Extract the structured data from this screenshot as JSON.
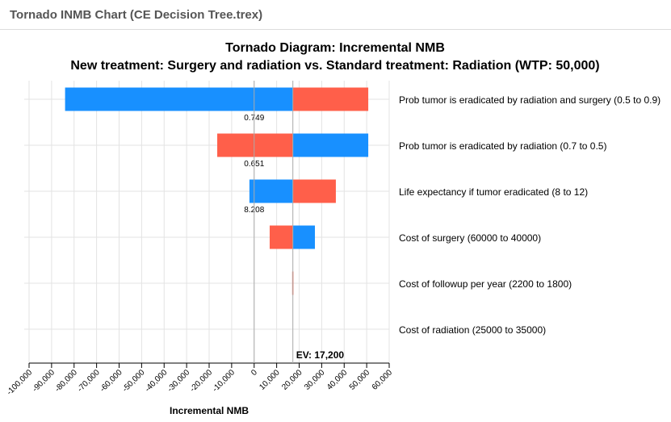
{
  "window_title": "Tornado INMB Chart (CE Decision Tree.trex)",
  "chart_data": {
    "type": "tornado",
    "title": "Tornado Diagram: Incremental NMB",
    "subtitle": "New treatment: Surgery and radiation vs. Standard treatment: Radiation (WTP: 50,000)",
    "xlabel": "Incremental NMB",
    "xlim": [
      -100000,
      60000
    ],
    "xticks": [
      -100000,
      -90000,
      -80000,
      -70000,
      -60000,
      -50000,
      -40000,
      -30000,
      -20000,
      -10000,
      0,
      10000,
      20000,
      30000,
      40000,
      50000,
      60000
    ],
    "xtick_labels": [
      "-100,000",
      "-90,000",
      "-80,000",
      "-70,000",
      "-60,000",
      "-50,000",
      "-40,000",
      "-30,000",
      "-20,000",
      "-10,000",
      "0",
      "10,000",
      "20,000",
      "30,000",
      "40,000",
      "50,000",
      "60,000"
    ],
    "ev": 17200,
    "ev_label": "EV: 17,200",
    "colors": {
      "low": "#1890ff",
      "high": "#ff5f4a"
    },
    "bars": [
      {
        "label": "Prob tumor is eradicated by radiation and surgery (0.5 to 0.9)",
        "low_value": -84000,
        "high_value": 50700,
        "breakeven": "0.749"
      },
      {
        "label": "Prob tumor is eradicated by radiation (0.7 to 0.5)",
        "low_value": 50700,
        "high_value": -16400,
        "breakeven": "0.651"
      },
      {
        "label": "Life expectancy if tumor eradicated (8 to 12)",
        "low_value": -2100,
        "high_value": 36300,
        "breakeven": "8.208"
      },
      {
        "label": "Cost of surgery (60000 to 40000)",
        "low_value": 27000,
        "high_value": 6900,
        "breakeven": ""
      },
      {
        "label": "Cost of followup per year (2200 to 1800)",
        "low_value": 17200,
        "high_value": 16900,
        "breakeven": ""
      },
      {
        "label": "Cost of radiation (25000 to 35000)",
        "low_value": 17200,
        "high_value": 17200,
        "breakeven": ""
      }
    ]
  }
}
